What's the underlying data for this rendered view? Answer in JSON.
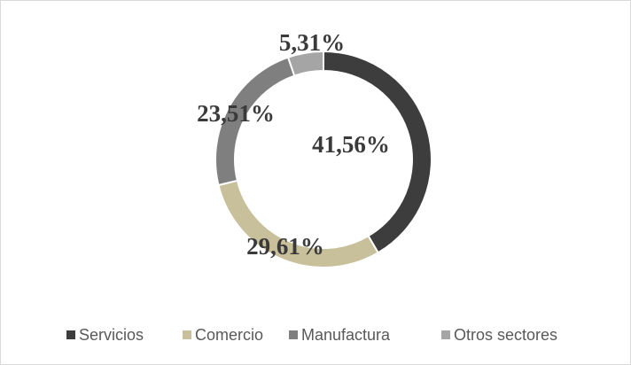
{
  "chart_data": {
    "type": "donut",
    "categories": [
      "Servicios",
      "Comercio",
      "Manufactura",
      "Otros sectores"
    ],
    "values": [
      41.56,
      29.61,
      23.51,
      5.31
    ],
    "value_labels": [
      "41,56%",
      "29,61%",
      "23,51%",
      "5,31%"
    ],
    "colors": [
      "#3d3d3d",
      "#c8c09a",
      "#7f7f7f",
      "#a5a5a5"
    ],
    "legend": "bottom"
  }
}
